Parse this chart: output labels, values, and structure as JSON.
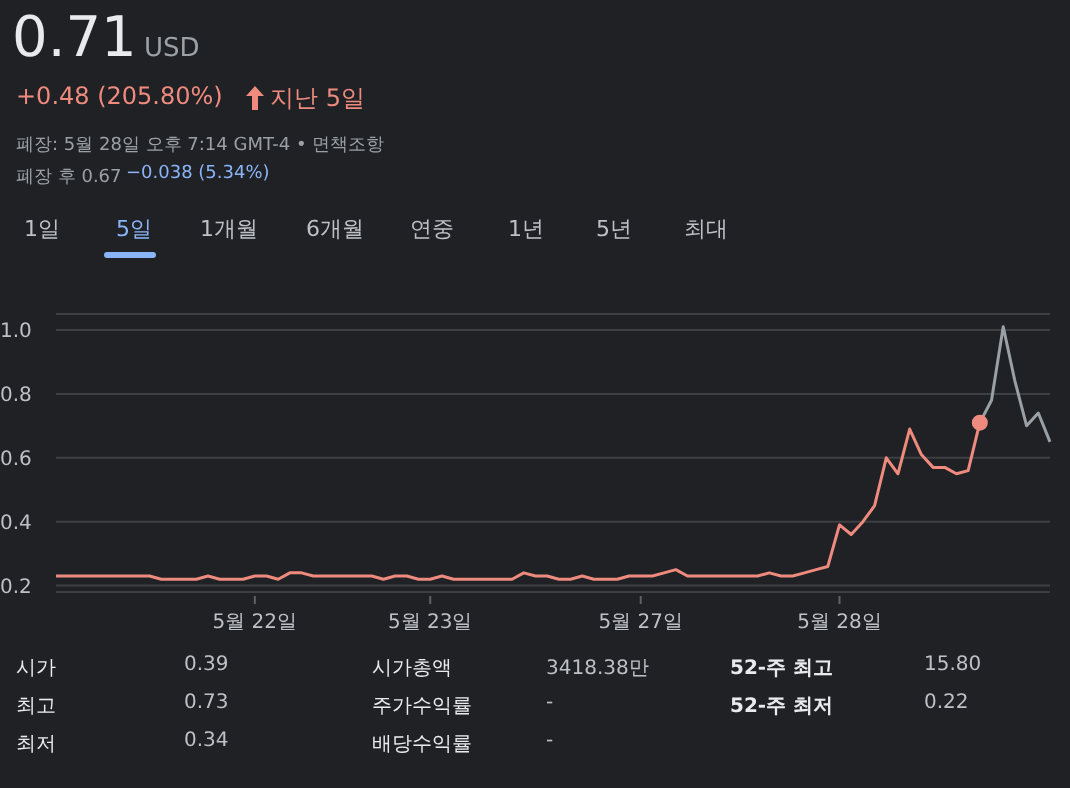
{
  "chart_data": {
    "type": "line",
    "title": "0.71",
    "annotations": [
      "USD",
      "+0.48 (205.80%)",
      "지난 5일",
      "폐장: 5월 28일 오후 7:14 GMT-4 • 면책조항",
      "폐장 후 0.67",
      "−0.038 (5.34%)",
      "1일",
      "5일",
      "1개월",
      "6개월",
      "연중",
      "1년",
      "5년",
      "최대",
      "시가",
      "0.39",
      "시가총액",
      "3418.38만",
      "52-주 최고",
      "15.80",
      "최고",
      "0.73",
      "주가수익률",
      "-",
      "52-주 최저",
      "0.22",
      "최저",
      "0.34",
      "배당수익률",
      "-"
    ],
    "categories": [
      null,
      null,
      null,
      null,
      null,
      null,
      null,
      null,
      null,
      null,
      null,
      null,
      null,
      null,
      null,
      null,
      null,
      "5월 22일",
      null,
      null,
      null,
      null,
      null,
      null,
      null,
      null,
      null,
      null,
      null,
      null,
      null,
      null,
      "5월 23일",
      null,
      null,
      null,
      null,
      null,
      null,
      null,
      null,
      null,
      null,
      null,
      null,
      null,
      null,
      null,
      null,
      null,
      "5월 27일",
      null,
      null,
      null,
      null,
      null,
      null,
      null,
      null,
      null,
      null,
      null,
      null,
      null,
      null,
      null,
      null,
      "5월 28일",
      null,
      null,
      null,
      null,
      null,
      null,
      null,
      null,
      null,
      null,
      null,
      null,
      null,
      null,
      null,
      null,
      null,
      null
    ],
    "ylim": [
      0.18,
      1.05
    ],
    "yticks": [
      {
        "value": 0.2,
        "label": "0.2"
      },
      {
        "value": 0.4,
        "label": "0.4"
      },
      {
        "value": 0.6,
        "label": "0.6"
      },
      {
        "value": 0.8,
        "label": "0.8"
      },
      {
        "value": 1.0,
        "label": "1.0"
      }
    ],
    "grid": "y",
    "line_style": "solid",
    "series": [
      {
        "color": "#ee8a7e",
        "values": [
          0.23,
          0.23,
          0.23,
          0.23,
          0.23,
          0.23,
          0.23,
          0.23,
          0.23,
          0.22,
          0.22,
          0.22,
          0.22,
          0.23,
          0.22,
          0.22,
          0.22,
          0.23,
          0.23,
          0.22,
          0.24,
          0.24,
          0.23,
          0.23,
          0.23,
          0.23,
          0.23,
          0.23,
          0.22,
          0.23,
          0.23,
          0.22,
          0.22,
          0.23,
          0.22,
          0.22,
          0.22,
          0.22,
          0.22,
          0.22,
          0.24,
          0.23,
          0.23,
          0.22,
          0.22,
          0.23,
          0.22,
          0.22,
          0.22,
          0.23,
          0.23,
          0.23,
          0.24,
          0.25,
          0.23,
          0.23,
          0.23,
          0.23,
          0.23,
          0.23,
          0.23,
          0.24,
          0.23,
          0.23,
          0.24,
          0.25,
          0.26,
          0.39,
          0.36,
          0.4,
          0.45,
          0.6,
          0.55,
          0.69,
          0.61,
          0.57,
          0.57,
          0.55,
          0.56,
          0.71,
          null,
          null,
          null,
          null,
          null,
          null
        ]
      },
      {
        "color": "#9aa0a6",
        "values": [
          null,
          null,
          null,
          null,
          null,
          null,
          null,
          null,
          null,
          null,
          null,
          null,
          null,
          null,
          null,
          null,
          null,
          null,
          null,
          null,
          null,
          null,
          null,
          null,
          null,
          null,
          null,
          null,
          null,
          null,
          null,
          null,
          null,
          null,
          null,
          null,
          null,
          null,
          null,
          null,
          null,
          null,
          null,
          null,
          null,
          null,
          null,
          null,
          null,
          null,
          null,
          null,
          null,
          null,
          null,
          null,
          null,
          null,
          null,
          null,
          null,
          null,
          null,
          null,
          null,
          null,
          null,
          null,
          null,
          null,
          null,
          null,
          null,
          null,
          null,
          null,
          null,
          null,
          null,
          0.71,
          0.78,
          1.01,
          0.84,
          0.7,
          0.74,
          0.65
        ]
      },
      {
        "type": "scatter",
        "color": "#ee8a7e",
        "values": [
          null,
          null,
          null,
          null,
          null,
          null,
          null,
          null,
          null,
          null,
          null,
          null,
          null,
          null,
          null,
          null,
          null,
          null,
          null,
          null,
          null,
          null,
          null,
          null,
          null,
          null,
          null,
          null,
          null,
          null,
          null,
          null,
          null,
          null,
          null,
          null,
          null,
          null,
          null,
          null,
          null,
          null,
          null,
          null,
          null,
          null,
          null,
          null,
          null,
          null,
          null,
          null,
          null,
          null,
          null,
          null,
          null,
          null,
          null,
          null,
          null,
          null,
          null,
          null,
          null,
          null,
          null,
          null,
          null,
          null,
          null,
          null,
          null,
          null,
          null,
          null,
          null,
          null,
          null,
          0.71,
          null,
          null,
          null,
          null,
          null,
          null
        ]
      }
    ]
  }
}
